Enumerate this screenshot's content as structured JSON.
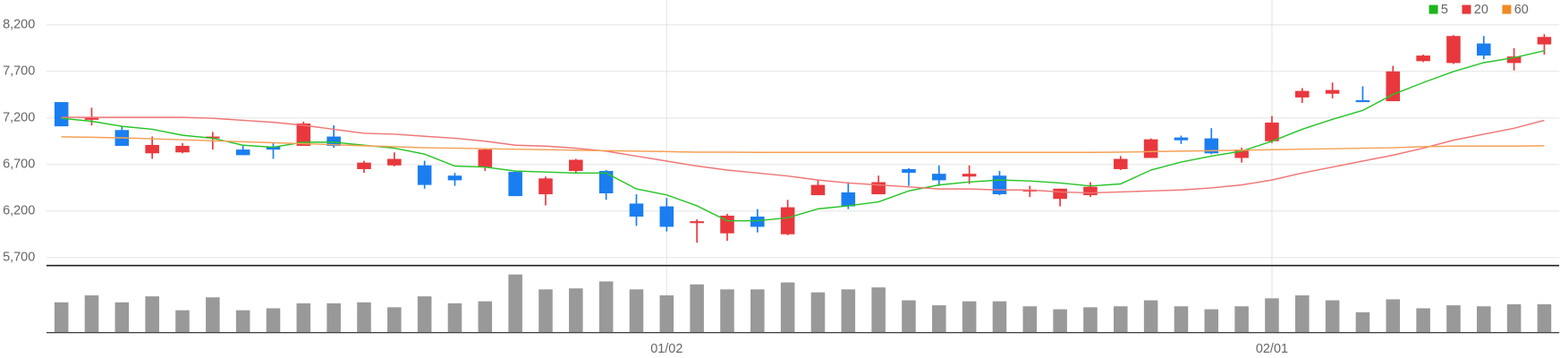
{
  "chart_data": [
    {
      "type": "candlestick",
      "categories": [
        null,
        null,
        null,
        null,
        null,
        null,
        null,
        null,
        null,
        null,
        null,
        null,
        null,
        null,
        null,
        null,
        null,
        null,
        null,
        null,
        "01/02",
        null,
        null,
        null,
        null,
        null,
        null,
        null,
        null,
        null,
        null,
        null,
        null,
        null,
        null,
        null,
        null,
        null,
        null,
        null,
        "02/01",
        null,
        null,
        null,
        null,
        null,
        null,
        null,
        null,
        null
      ],
      "open": [
        7370,
        7180,
        7070,
        6820,
        6830,
        6980,
        6860,
        6890,
        6900,
        7000,
        6650,
        6690,
        6690,
        6580,
        6670,
        6620,
        6380,
        6630,
        6630,
        6280,
        6250,
        6070,
        5960,
        6140,
        5950,
        6370,
        6400,
        6380,
        6650,
        6600,
        6570,
        6580,
        6410,
        6330,
        6370,
        6650,
        6770,
        6990,
        6980,
        6770,
        6950,
        7420,
        7460,
        7390,
        7380,
        7810,
        7790,
        8000,
        7790,
        7990
      ],
      "high": [
        7370,
        7310,
        7110,
        7000,
        6930,
        7050,
        6900,
        6930,
        7160,
        7120,
        6740,
        6830,
        6740,
        6610,
        6870,
        6630,
        6570,
        6760,
        6640,
        6380,
        6340,
        6110,
        6170,
        6220,
        6320,
        6530,
        6510,
        6580,
        6660,
        6690,
        6690,
        6630,
        6470,
        6440,
        6510,
        6790,
        6980,
        7010,
        7090,
        6880,
        7220,
        7520,
        7580,
        7540,
        7760,
        7880,
        8090,
        8080,
        7950,
        8100
      ],
      "low": [
        7110,
        7120,
        6900,
        6760,
        6820,
        6860,
        6800,
        6760,
        6900,
        6880,
        6610,
        6680,
        6440,
        6470,
        6630,
        6360,
        6260,
        6610,
        6320,
        6040,
        5980,
        5860,
        5880,
        5970,
        5940,
        6370,
        6220,
        6380,
        6470,
        6470,
        6490,
        6370,
        6350,
        6250,
        6350,
        6640,
        6770,
        6920,
        6810,
        6720,
        6930,
        7360,
        7410,
        7370,
        7380,
        7800,
        7780,
        7830,
        7710,
        7880
      ],
      "close": [
        7110,
        7200,
        6900,
        6910,
        6900,
        7000,
        6800,
        6860,
        7140,
        6900,
        6720,
        6760,
        6480,
        6530,
        6860,
        6360,
        6550,
        6750,
        6390,
        6140,
        6030,
        6090,
        6150,
        6030,
        6240,
        6480,
        6250,
        6510,
        6610,
        6530,
        6600,
        6380,
        6430,
        6440,
        6460,
        6760,
        6970,
        6960,
        6820,
        6860,
        7150,
        7490,
        7500,
        7370,
        7700,
        7870,
        8080,
        7870,
        7860,
        8070
      ],
      "up_color": "#e8383d",
      "down_color": "#1a7ef0",
      "series": [
        {
          "name": "5",
          "color": "#27c427",
          "values": [
            7196,
            7164,
            7110,
            7078,
            7014,
            6982,
            6907,
            6886,
            6939,
            6939,
            6907,
            6875,
            6811,
            6683,
            6672,
            6629,
            6619,
            6608,
            6608,
            6437,
            6373,
            6256,
            6095,
            6095,
            6127,
            6223,
            6256,
            6298,
            6416,
            6480,
            6512,
            6533,
            6523,
            6501,
            6469,
            6491,
            6640,
            6726,
            6790,
            6843,
            6950,
            7078,
            7185,
            7281,
            7452,
            7580,
            7698,
            7794,
            7847,
            7922
          ]
        },
        {
          "name": "20",
          "color": "#f07575",
          "values": [
            7206,
            7206,
            7206,
            7206,
            7206,
            7196,
            7174,
            7153,
            7121,
            7078,
            7035,
            7025,
            7003,
            6982,
            6950,
            6907,
            6897,
            6875,
            6843,
            6790,
            6736,
            6683,
            6640,
            6608,
            6576,
            6533,
            6501,
            6480,
            6459,
            6437,
            6437,
            6426,
            6426,
            6405,
            6394,
            6405,
            6416,
            6426,
            6448,
            6480,
            6533,
            6608,
            6672,
            6736,
            6800,
            6875,
            6961,
            7025,
            7089,
            7174
          ]
        },
        {
          "name": "60",
          "color": "#f5a055",
          "values": [
            6997,
            6992,
            6986,
            6976,
            6965,
            6955,
            6944,
            6933,
            6923,
            6912,
            6901,
            6891,
            6880,
            6875,
            6869,
            6864,
            6859,
            6853,
            6848,
            6843,
            6838,
            6832,
            6832,
            6830,
            6830,
            6830,
            6830,
            6830,
            6830,
            6830,
            6830,
            6830,
            6830,
            6830,
            6830,
            6832,
            6838,
            6843,
            6848,
            6853,
            6859,
            6864,
            6869,
            6875,
            6880,
            6891,
            6897,
            6897,
            6897,
            6901
          ]
        }
      ],
      "legend_colors": [
        "#1db51d",
        "#e8383d",
        "#f08a24"
      ],
      "ylim": [
        5625,
        8467
      ],
      "yticks": [
        {
          "value": 5700,
          "label": "5,700"
        },
        {
          "value": 6200,
          "label": "6,200"
        },
        {
          "value": 6700,
          "label": "6,700"
        },
        {
          "value": 7200,
          "label": "7,200"
        },
        {
          "value": 7700,
          "label": "7,700"
        },
        {
          "value": 8200,
          "label": "8,200"
        }
      ],
      "grid": true,
      "legend": "top-right"
    },
    {
      "type": "bar",
      "color": "#999999",
      "ylim": [
        0,
        66
      ],
      "values": [
        30,
        37,
        30,
        36,
        22,
        35,
        22,
        24,
        29,
        29,
        30,
        25,
        36,
        29,
        31,
        58,
        43,
        44,
        51,
        43,
        37,
        48,
        43,
        43,
        50,
        40,
        43,
        45,
        32,
        27,
        31,
        31,
        26,
        23,
        25,
        26,
        32,
        26,
        23,
        26,
        34,
        37,
        32,
        20,
        33,
        24,
        27,
        26,
        28,
        28
      ]
    }
  ]
}
